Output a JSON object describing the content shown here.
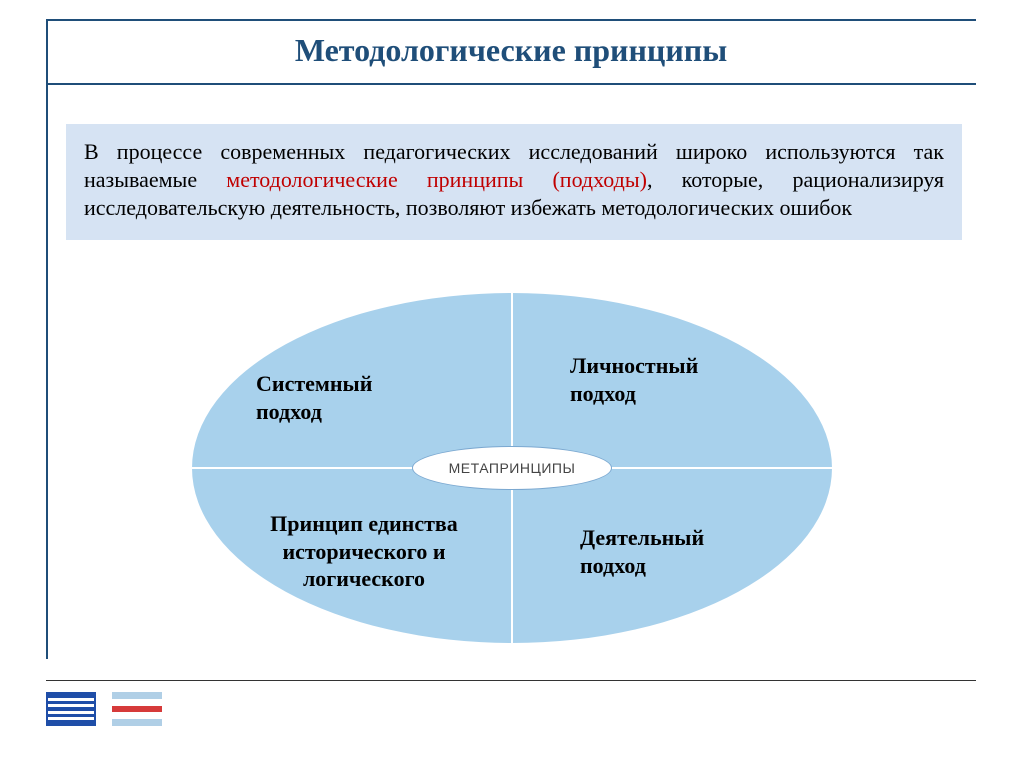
{
  "title": "Методологические принципы",
  "intro": {
    "part1": "В процессе современных педагогических исследований широко используются так называемые ",
    "highlight": "методологические принципы (подходы)",
    "part2": ", которые, рационализируя исследовательскую деятельность, позволяют избежать методологических ошибок"
  },
  "diagram": {
    "center": "МЕТАПРИНЦИПЫ",
    "quadrants": {
      "top_left": "Системный\nподход",
      "top_right": "Личностный\nподход",
      "bottom_left": "Принцип единства\nисторического и\nлогического",
      "bottom_right": "Деятельный\nподход"
    },
    "style": {
      "ellipse_fill": "#a8d1ec",
      "ellipse_border": "#ffffff",
      "divider_color": "#ffffff",
      "center_fill": "#ffffff",
      "center_border": "#7ba8d0",
      "label_color": "#000000",
      "label_fontsize": 22,
      "center_fontsize": 14
    }
  },
  "colors": {
    "header_line": "#1f4e79",
    "title_text": "#1f4e79",
    "intro_bg": "#d6e3f3",
    "highlight_text": "#c00000"
  },
  "footer": {
    "logo_a_bg": "#1f4ea8",
    "logo_a_bar": "#ffffff",
    "logo_b_stripes": [
      "#b0cfe6",
      "#ffffff",
      "#d63a3a",
      "#ffffff",
      "#b0cfe6"
    ]
  }
}
